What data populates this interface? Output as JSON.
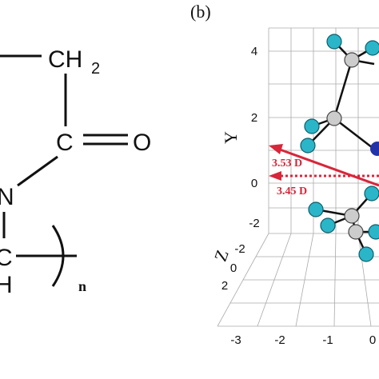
{
  "structure": {
    "ch2": {
      "text": "CH",
      "subscript": "2"
    },
    "carbonyl_c": "C",
    "oxygen": "O",
    "nitrogen": "N",
    "backbone_c": "C",
    "hydrogen": "H",
    "repeat": "n"
  },
  "panel_b": {
    "label": "(b)",
    "y_axis": {
      "label": "Y",
      "ticks": [
        "4",
        "2",
        "0",
        "-2"
      ]
    },
    "z_axis": {
      "label": "Z",
      "ticks": [
        "-2",
        "0",
        "2"
      ]
    },
    "x_axis": {
      "ticks": [
        "-3",
        "-2",
        "-1",
        "0"
      ]
    },
    "dipoles": [
      "3.53 D",
      "3.45 D"
    ]
  }
}
